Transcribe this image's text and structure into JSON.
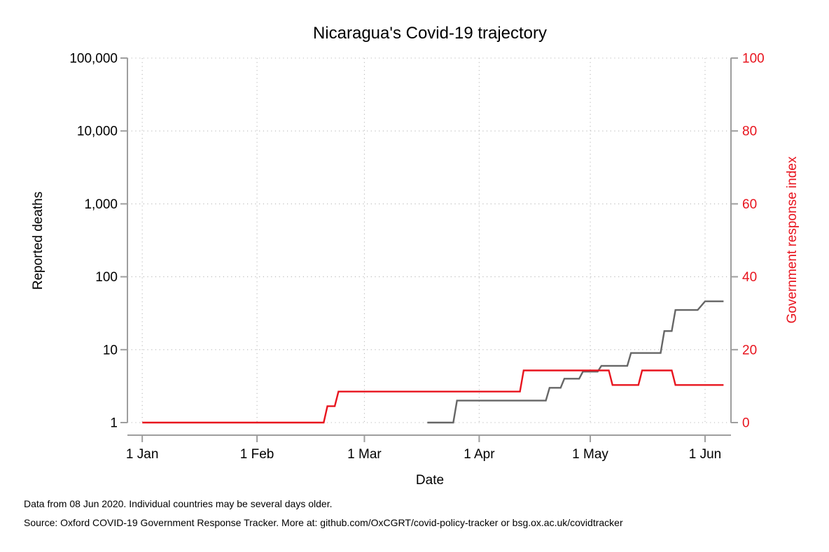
{
  "chart_data": {
    "type": "line",
    "title": "Nicaragua's Covid-19 trajectory",
    "xlabel": "Date",
    "ylabel_left": "Reported deaths",
    "ylabel_right": "Government response index",
    "x_ticks": [
      {
        "label": "1 Jan",
        "date": "2020-01-01"
      },
      {
        "label": "1 Feb",
        "date": "2020-02-01"
      },
      {
        "label": "1 Mar",
        "date": "2020-03-01"
      },
      {
        "label": "1 Apr",
        "date": "2020-04-01"
      },
      {
        "label": "1 May",
        "date": "2020-05-01"
      },
      {
        "label": "1 Jun",
        "date": "2020-06-01"
      }
    ],
    "x_range": [
      "2019-12-28",
      "2020-06-08"
    ],
    "y_left": {
      "scale": "log",
      "range": [
        1,
        100000
      ],
      "ticks": [
        {
          "value": 1,
          "label": "1"
        },
        {
          "value": 10,
          "label": "10"
        },
        {
          "value": 100,
          "label": "100"
        },
        {
          "value": 1000,
          "label": "1,000"
        },
        {
          "value": 10000,
          "label": "10,000"
        },
        {
          "value": 100000,
          "label": "100,000"
        }
      ]
    },
    "y_right": {
      "scale": "linear",
      "range": [
        0,
        100
      ],
      "ticks": [
        {
          "value": 0,
          "label": "0"
        },
        {
          "value": 20,
          "label": "20"
        },
        {
          "value": 40,
          "label": "40"
        },
        {
          "value": 60,
          "label": "60"
        },
        {
          "value": 80,
          "label": "80"
        },
        {
          "value": 100,
          "label": "100"
        }
      ]
    },
    "grid": true,
    "series": [
      {
        "axis": "left",
        "color": "#666666",
        "points": [
          [
            "2020-03-18",
            1
          ],
          [
            "2020-03-25",
            1
          ],
          [
            "2020-03-26",
            2
          ],
          [
            "2020-04-19",
            2
          ],
          [
            "2020-04-20",
            3
          ],
          [
            "2020-04-23",
            3
          ],
          [
            "2020-04-24",
            4
          ],
          [
            "2020-04-28",
            4
          ],
          [
            "2020-04-29",
            5
          ],
          [
            "2020-05-03",
            5
          ],
          [
            "2020-05-04",
            6
          ],
          [
            "2020-05-11",
            6
          ],
          [
            "2020-05-12",
            9
          ],
          [
            "2020-05-20",
            9
          ],
          [
            "2020-05-21",
            18
          ],
          [
            "2020-05-23",
            18
          ],
          [
            "2020-05-24",
            35
          ],
          [
            "2020-05-30",
            35
          ],
          [
            "2020-06-01",
            46
          ],
          [
            "2020-06-06",
            46
          ]
        ]
      },
      {
        "axis": "right",
        "color": "#e8141e",
        "points": [
          [
            "2020-01-01",
            0
          ],
          [
            "2020-02-19",
            0
          ],
          [
            "2020-02-20",
            4.5
          ],
          [
            "2020-02-22",
            4.5
          ],
          [
            "2020-02-23",
            8.5
          ],
          [
            "2020-04-12",
            8.5
          ],
          [
            "2020-04-13",
            14.3
          ],
          [
            "2020-05-06",
            14.3
          ],
          [
            "2020-05-07",
            10.3
          ],
          [
            "2020-05-14",
            10.3
          ],
          [
            "2020-05-15",
            14.3
          ],
          [
            "2020-05-23",
            14.3
          ],
          [
            "2020-05-24",
            10.3
          ],
          [
            "2020-06-06",
            10.3
          ]
        ]
      }
    ]
  },
  "notes": {
    "line1": "Data from 08 Jun 2020. Individual countries may be several days older.",
    "line2": "Source: Oxford COVID-19 Government Response Tracker. More at: github.com/OxCGRT/covid-policy-tracker or bsg.ox.ac.uk/covidtracker"
  }
}
